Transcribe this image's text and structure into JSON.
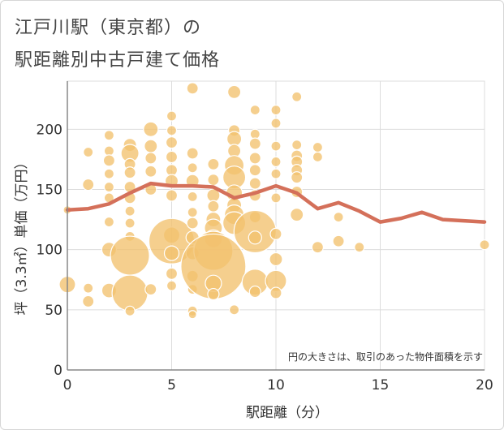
{
  "title_lines": [
    "江戸川駅（東京都）の",
    "駅距離別中古戸建て価格"
  ],
  "colors": {
    "bubble_fill": "#f2c26e",
    "bubble_stroke": "#ffffff",
    "line": "#d4705a",
    "grid": "#dcdcdc",
    "axis": "#888888"
  },
  "chart_data": {
    "type": "scatter",
    "xlabel": "駅距離（分）",
    "ylabel": "坪（3.3㎡）単価（万円）",
    "xlim": [
      0,
      20
    ],
    "ylim": [
      0,
      240
    ],
    "xticks": [
      0,
      5,
      10,
      15,
      20
    ],
    "yticks": [
      0,
      50,
      100,
      150,
      200
    ],
    "grid": true,
    "note": "円の大きさは、取引のあった物件面積を示す",
    "bubbles": [
      {
        "x": 0,
        "y": 133,
        "s": 5
      },
      {
        "x": 0,
        "y": 71,
        "s": 10
      },
      {
        "x": 1,
        "y": 181,
        "s": 6
      },
      {
        "x": 1,
        "y": 154,
        "s": 7
      },
      {
        "x": 1,
        "y": 68,
        "s": 6
      },
      {
        "x": 1,
        "y": 57,
        "s": 7
      },
      {
        "x": 2,
        "y": 195,
        "s": 6
      },
      {
        "x": 2,
        "y": 182,
        "s": 6
      },
      {
        "x": 2,
        "y": 174,
        "s": 7
      },
      {
        "x": 2,
        "y": 163,
        "s": 6
      },
      {
        "x": 2,
        "y": 152,
        "s": 6
      },
      {
        "x": 2,
        "y": 143,
        "s": 6
      },
      {
        "x": 2,
        "y": 123,
        "s": 6
      },
      {
        "x": 2,
        "y": 100,
        "s": 9
      },
      {
        "x": 2,
        "y": 66,
        "s": 9
      },
      {
        "x": 3,
        "y": 187,
        "s": 8
      },
      {
        "x": 3,
        "y": 180,
        "s": 11
      },
      {
        "x": 3,
        "y": 171,
        "s": 7
      },
      {
        "x": 3,
        "y": 164,
        "s": 7
      },
      {
        "x": 3,
        "y": 152,
        "s": 7
      },
      {
        "x": 3,
        "y": 143,
        "s": 7
      },
      {
        "x": 3,
        "y": 132,
        "s": 6
      },
      {
        "x": 3,
        "y": 122,
        "s": 6
      },
      {
        "x": 3,
        "y": 111,
        "s": 6
      },
      {
        "x": 3,
        "y": 95,
        "s": 24
      },
      {
        "x": 3,
        "y": 64,
        "s": 22
      },
      {
        "x": 3,
        "y": 49,
        "s": 6
      },
      {
        "x": 4,
        "y": 200,
        "s": 9
      },
      {
        "x": 4,
        "y": 186,
        "s": 8
      },
      {
        "x": 4,
        "y": 176,
        "s": 7
      },
      {
        "x": 4,
        "y": 165,
        "s": 7
      },
      {
        "x": 4,
        "y": 150,
        "s": 7
      },
      {
        "x": 4,
        "y": 67,
        "s": 7
      },
      {
        "x": 5,
        "y": 211,
        "s": 6
      },
      {
        "x": 5,
        "y": 199,
        "s": 6
      },
      {
        "x": 5,
        "y": 189,
        "s": 7
      },
      {
        "x": 5,
        "y": 177,
        "s": 7
      },
      {
        "x": 5,
        "y": 166,
        "s": 7
      },
      {
        "x": 5,
        "y": 157,
        "s": 8
      },
      {
        "x": 5,
        "y": 145,
        "s": 7
      },
      {
        "x": 5,
        "y": 112,
        "s": 10
      },
      {
        "x": 5,
        "y": 107,
        "s": 28
      },
      {
        "x": 5,
        "y": 97,
        "s": 9
      },
      {
        "x": 5,
        "y": 80,
        "s": 7
      },
      {
        "x": 5,
        "y": 70,
        "s": 6
      },
      {
        "x": 6,
        "y": 234,
        "s": 7
      },
      {
        "x": 6,
        "y": 180,
        "s": 7
      },
      {
        "x": 6,
        "y": 168,
        "s": 6
      },
      {
        "x": 6,
        "y": 157,
        "s": 8
      },
      {
        "x": 6,
        "y": 144,
        "s": 6
      },
      {
        "x": 6,
        "y": 131,
        "s": 6
      },
      {
        "x": 6,
        "y": 122,
        "s": 7
      },
      {
        "x": 6,
        "y": 110,
        "s": 8
      },
      {
        "x": 6,
        "y": 97,
        "s": 8
      },
      {
        "x": 6,
        "y": 78,
        "s": 7
      },
      {
        "x": 6,
        "y": 67,
        "s": 6
      },
      {
        "x": 6,
        "y": 49,
        "s": 6
      },
      {
        "x": 6,
        "y": 46,
        "s": 5
      },
      {
        "x": 7,
        "y": 171,
        "s": 7
      },
      {
        "x": 7,
        "y": 158,
        "s": 7
      },
      {
        "x": 7,
        "y": 145,
        "s": 8
      },
      {
        "x": 7,
        "y": 136,
        "s": 7
      },
      {
        "x": 7,
        "y": 125,
        "s": 9
      },
      {
        "x": 7,
        "y": 118,
        "s": 11
      },
      {
        "x": 7,
        "y": 109,
        "s": 11
      },
      {
        "x": 7,
        "y": 99,
        "s": 24
      },
      {
        "x": 7,
        "y": 86,
        "s": 40
      },
      {
        "x": 7,
        "y": 72,
        "s": 10
      },
      {
        "x": 7,
        "y": 63,
        "s": 7
      },
      {
        "x": 8,
        "y": 231,
        "s": 8
      },
      {
        "x": 8,
        "y": 199,
        "s": 7
      },
      {
        "x": 8,
        "y": 192,
        "s": 9
      },
      {
        "x": 8,
        "y": 182,
        "s": 8
      },
      {
        "x": 8,
        "y": 170,
        "s": 12
      },
      {
        "x": 8,
        "y": 160,
        "s": 14
      },
      {
        "x": 8,
        "y": 147,
        "s": 10
      },
      {
        "x": 8,
        "y": 137,
        "s": 9
      },
      {
        "x": 8,
        "y": 129,
        "s": 12
      },
      {
        "x": 8,
        "y": 122,
        "s": 14
      },
      {
        "x": 8,
        "y": 50,
        "s": 6
      },
      {
        "x": 9,
        "y": 216,
        "s": 6
      },
      {
        "x": 9,
        "y": 196,
        "s": 6
      },
      {
        "x": 9,
        "y": 188,
        "s": 7
      },
      {
        "x": 9,
        "y": 176,
        "s": 7
      },
      {
        "x": 9,
        "y": 166,
        "s": 7
      },
      {
        "x": 9,
        "y": 155,
        "s": 7
      },
      {
        "x": 9,
        "y": 145,
        "s": 7
      },
      {
        "x": 9,
        "y": 127,
        "s": 7
      },
      {
        "x": 9,
        "y": 115,
        "s": 26
      },
      {
        "x": 9,
        "y": 110,
        "s": 8
      },
      {
        "x": 9,
        "y": 73,
        "s": 16
      },
      {
        "x": 9,
        "y": 65,
        "s": 7
      },
      {
        "x": 10,
        "y": 216,
        "s": 6
      },
      {
        "x": 10,
        "y": 205,
        "s": 6
      },
      {
        "x": 10,
        "y": 186,
        "s": 6
      },
      {
        "x": 10,
        "y": 173,
        "s": 6
      },
      {
        "x": 10,
        "y": 163,
        "s": 6
      },
      {
        "x": 10,
        "y": 143,
        "s": 6
      },
      {
        "x": 10,
        "y": 113,
        "s": 7
      },
      {
        "x": 10,
        "y": 92,
        "s": 8
      },
      {
        "x": 10,
        "y": 74,
        "s": 13
      },
      {
        "x": 10,
        "y": 64,
        "s": 7
      },
      {
        "x": 11,
        "y": 227,
        "s": 6
      },
      {
        "x": 11,
        "y": 187,
        "s": 6
      },
      {
        "x": 11,
        "y": 178,
        "s": 7
      },
      {
        "x": 11,
        "y": 173,
        "s": 7
      },
      {
        "x": 11,
        "y": 166,
        "s": 7
      },
      {
        "x": 11,
        "y": 160,
        "s": 7
      },
      {
        "x": 11,
        "y": 148,
        "s": 7
      },
      {
        "x": 11,
        "y": 129,
        "s": 8
      },
      {
        "x": 12,
        "y": 185,
        "s": 6
      },
      {
        "x": 12,
        "y": 177,
        "s": 6
      },
      {
        "x": 12,
        "y": 102,
        "s": 7
      },
      {
        "x": 13,
        "y": 127,
        "s": 6
      },
      {
        "x": 13,
        "y": 107,
        "s": 7
      },
      {
        "x": 14,
        "y": 102,
        "s": 6
      },
      {
        "x": 20,
        "y": 104,
        "s": 6
      }
    ],
    "series": [
      {
        "type": "line",
        "x": [
          0,
          1,
          2,
          3,
          4,
          5,
          6,
          7,
          8,
          9,
          10,
          11,
          12,
          13,
          14,
          15,
          16,
          17,
          18,
          19,
          20
        ],
        "values": [
          133,
          134,
          138,
          147,
          155,
          153,
          153,
          152,
          143,
          147,
          153,
          147,
          134,
          139,
          132,
          123,
          126,
          131,
          125,
          124,
          123
        ]
      }
    ]
  }
}
